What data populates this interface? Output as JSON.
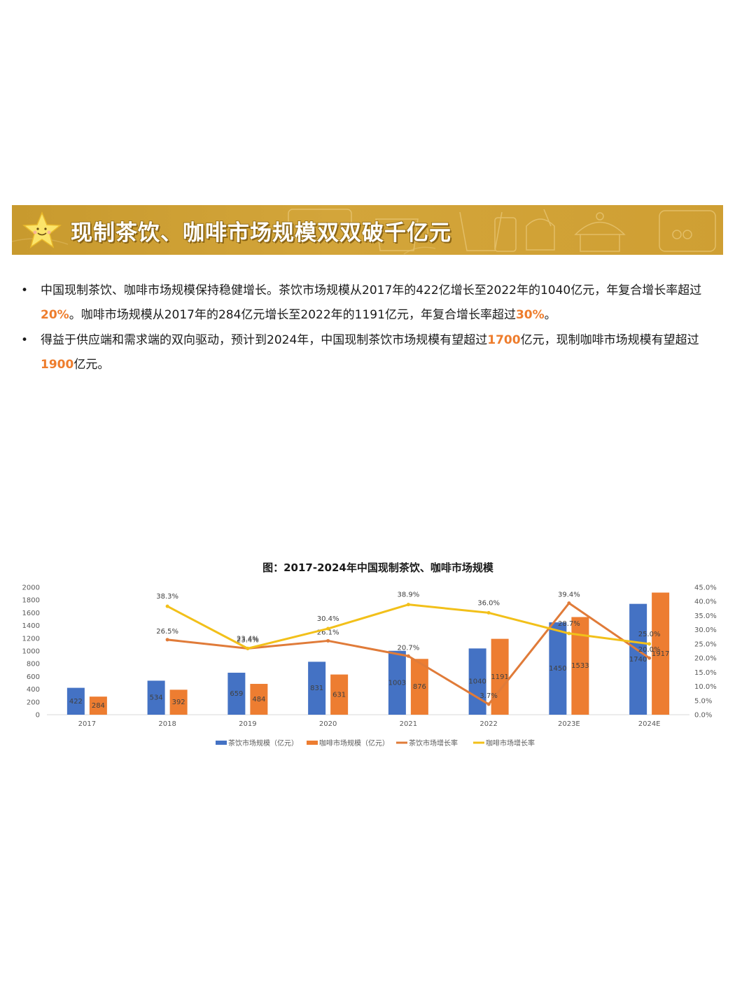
{
  "header": {
    "title": "现制茶饮、咖啡市场规模双双破千亿元"
  },
  "bullets": [
    {
      "parts": [
        {
          "text": "中国现制茶饮、咖啡市场规模保持稳健增长。茶饮市场规模从2017年的422亿增长至2022年的1040亿元，年复合增长率超过",
          "hl": false
        },
        {
          "text": "20%",
          "hl": true
        },
        {
          "text": "。咖啡市场规模从2017年的284亿元增长至2022年的1191亿元，年复合增长率超过",
          "hl": false
        },
        {
          "text": "30%",
          "hl": true
        },
        {
          "text": "。",
          "hl": false
        }
      ]
    },
    {
      "parts": [
        {
          "text": "得益于供应端和需求端的双向驱动，预计到2024年，中国现制茶饮市场规模有望超过",
          "hl": false
        },
        {
          "text": "1700",
          "hl": true
        },
        {
          "text": "亿元，现制咖啡市场规模有望超过",
          "hl": false
        },
        {
          "text": "1900",
          "hl": true
        },
        {
          "text": "亿元。",
          "hl": false
        }
      ]
    }
  ],
  "colors": {
    "accent_orange": "#ee7d2d",
    "banner_gold": "#cf9f33",
    "bar_tea": "#4472c4",
    "bar_coffee": "#ed7d31",
    "line_tea": "#e07b39",
    "line_coffee": "#f2c01a"
  },
  "chart_data": {
    "type": "bar",
    "title": "图：2017-2024年中国现制茶饮、咖啡市场规模",
    "categories": [
      "2017",
      "2018",
      "2019",
      "2020",
      "2021",
      "2022",
      "2023E",
      "2024E"
    ],
    "series": [
      {
        "name": "茶饮市场规模（亿元）",
        "type": "bar",
        "axis": "left",
        "color": "#4472c4",
        "values": [
          422,
          534,
          659,
          831,
          1003,
          1040,
          1450,
          1740
        ]
      },
      {
        "name": "咖啡市场规模（亿元）",
        "type": "bar",
        "axis": "left",
        "color": "#ed7d31",
        "values": [
          284,
          392,
          484,
          631,
          876,
          1191,
          1533,
          1917
        ]
      },
      {
        "name": "茶饮市场增长率",
        "type": "line",
        "axis": "right",
        "color": "#e07b39",
        "values": [
          null,
          26.5,
          23.4,
          26.1,
          20.7,
          3.7,
          39.4,
          20.0
        ],
        "labels": [
          null,
          "26.5%",
          "23.4%",
          "26.1%",
          "20.7%",
          "3.7%",
          "39.4%",
          "20.0%"
        ]
      },
      {
        "name": "咖啡市场增长率",
        "type": "line",
        "axis": "right",
        "color": "#f2c01a",
        "values": [
          null,
          38.3,
          23.4,
          30.4,
          38.9,
          36.0,
          28.7,
          25.0
        ],
        "labels": [
          null,
          "38.3%",
          "23.4%",
          "30.4%",
          "38.9%",
          "36.0%",
          "28.7%",
          "25.0%"
        ]
      }
    ],
    "y_left": {
      "min": 0,
      "max": 2000,
      "step": 200,
      "ticks": [
        "0",
        "200",
        "400",
        "600",
        "800",
        "1000",
        "1200",
        "1400",
        "1600",
        "1800",
        "2000"
      ]
    },
    "y_right": {
      "min": 0,
      "max": 45,
      "step": 5,
      "ticks": [
        "0.0%",
        "5.0%",
        "10.0%",
        "15.0%",
        "20.0%",
        "25.0%",
        "30.0%",
        "35.0%",
        "40.0%",
        "45.0%"
      ]
    },
    "grid": false,
    "legend_position": "bottom"
  }
}
